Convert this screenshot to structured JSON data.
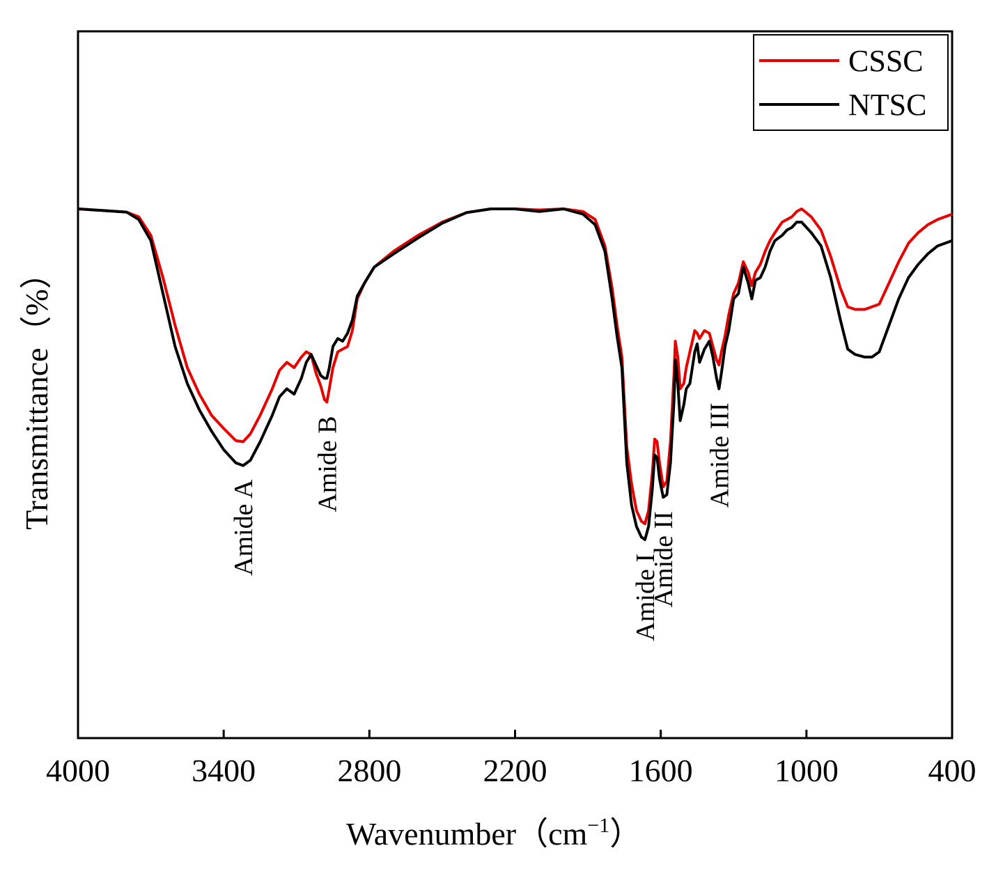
{
  "chart_data": {
    "type": "line",
    "title": "",
    "xlabel": "Wavenumber（cm",
    "xlabel_sup": "−1",
    "xlabel_close": "）",
    "ylabel": "Transmittance（%）",
    "xlim": [
      4000,
      400
    ],
    "ylim": [
      0,
      100
    ],
    "x_ticks": [
      4000,
      3400,
      2800,
      2200,
      1600,
      1000,
      400
    ],
    "y_ticks_shown": false,
    "grid": false,
    "legend": {
      "position": "top-right"
    },
    "series": [
      {
        "name": "CSSC",
        "color": "#e60000",
        "points": [
          [
            4000,
            100
          ],
          [
            3900,
            99.7
          ],
          [
            3800,
            99.4
          ],
          [
            3750,
            98.5
          ],
          [
            3700,
            95
          ],
          [
            3650,
            87
          ],
          [
            3600,
            78
          ],
          [
            3550,
            70
          ],
          [
            3500,
            65
          ],
          [
            3450,
            61
          ],
          [
            3400,
            58.5
          ],
          [
            3350,
            56.2
          ],
          [
            3320,
            56
          ],
          [
            3290,
            57.5
          ],
          [
            3250,
            61
          ],
          [
            3200,
            66
          ],
          [
            3170,
            69.5
          ],
          [
            3140,
            71
          ],
          [
            3110,
            70
          ],
          [
            3080,
            72
          ],
          [
            3060,
            73
          ],
          [
            3040,
            72.5
          ],
          [
            3020,
            69
          ],
          [
            3000,
            66.5
          ],
          [
            2985,
            64
          ],
          [
            2975,
            63.5
          ],
          [
            2965,
            66
          ],
          [
            2950,
            70
          ],
          [
            2930,
            73
          ],
          [
            2910,
            73.5
          ],
          [
            2890,
            74
          ],
          [
            2870,
            77
          ],
          [
            2850,
            83
          ],
          [
            2820,
            86
          ],
          [
            2780,
            89
          ],
          [
            2700,
            92
          ],
          [
            2600,
            95
          ],
          [
            2500,
            97.5
          ],
          [
            2400,
            99.3
          ],
          [
            2300,
            100
          ],
          [
            2200,
            100
          ],
          [
            2100,
            99.8
          ],
          [
            2000,
            100
          ],
          [
            1920,
            99.5
          ],
          [
            1870,
            98
          ],
          [
            1830,
            93
          ],
          [
            1800,
            85
          ],
          [
            1780,
            78
          ],
          [
            1770,
            75
          ],
          [
            1760,
            72
          ],
          [
            1740,
            55
          ],
          [
            1720,
            48
          ],
          [
            1700,
            43
          ],
          [
            1680,
            41
          ],
          [
            1665,
            40.5
          ],
          [
            1650,
            43
          ],
          [
            1635,
            50
          ],
          [
            1625,
            56.5
          ],
          [
            1615,
            56
          ],
          [
            1605,
            52
          ],
          [
            1590,
            47.5
          ],
          [
            1575,
            48.5
          ],
          [
            1560,
            56
          ],
          [
            1545,
            69
          ],
          [
            1540,
            75
          ],
          [
            1530,
            72
          ],
          [
            1520,
            66
          ],
          [
            1505,
            67
          ],
          [
            1495,
            70
          ],
          [
            1480,
            73
          ],
          [
            1460,
            77
          ],
          [
            1450,
            76.5
          ],
          [
            1440,
            75.5
          ],
          [
            1420,
            77
          ],
          [
            1400,
            76.5
          ],
          [
            1385,
            74
          ],
          [
            1370,
            71.5
          ],
          [
            1360,
            70.5
          ],
          [
            1350,
            73
          ],
          [
            1335,
            76
          ],
          [
            1320,
            80
          ],
          [
            1300,
            84
          ],
          [
            1280,
            86
          ],
          [
            1260,
            90
          ],
          [
            1240,
            88
          ],
          [
            1225,
            85.5
          ],
          [
            1210,
            88
          ],
          [
            1190,
            89.5
          ],
          [
            1170,
            92
          ],
          [
            1150,
            94
          ],
          [
            1130,
            95.5
          ],
          [
            1100,
            97.5
          ],
          [
            1080,
            98
          ],
          [
            1060,
            98.5
          ],
          [
            1040,
            99.5
          ],
          [
            1020,
            100
          ],
          [
            980,
            98.5
          ],
          [
            940,
            96
          ],
          [
            900,
            91
          ],
          [
            860,
            85
          ],
          [
            830,
            81.5
          ],
          [
            800,
            81
          ],
          [
            760,
            81
          ],
          [
            730,
            81.5
          ],
          [
            700,
            82
          ],
          [
            660,
            86
          ],
          [
            620,
            90
          ],
          [
            580,
            93.5
          ],
          [
            540,
            95.5
          ],
          [
            500,
            97
          ],
          [
            460,
            98
          ],
          [
            400,
            99
          ]
        ]
      },
      {
        "name": "NTSC",
        "color": "#000000",
        "points": [
          [
            4000,
            100
          ],
          [
            3900,
            99.7
          ],
          [
            3800,
            99.4
          ],
          [
            3750,
            98
          ],
          [
            3700,
            94
          ],
          [
            3650,
            84
          ],
          [
            3600,
            74
          ],
          [
            3550,
            67
          ],
          [
            3500,
            62
          ],
          [
            3450,
            58
          ],
          [
            3400,
            54.5
          ],
          [
            3350,
            52
          ],
          [
            3320,
            51.5
          ],
          [
            3290,
            52.5
          ],
          [
            3250,
            56
          ],
          [
            3200,
            61
          ],
          [
            3170,
            64.5
          ],
          [
            3140,
            66
          ],
          [
            3110,
            65
          ],
          [
            3080,
            68
          ],
          [
            3060,
            71
          ],
          [
            3040,
            72.5
          ],
          [
            3020,
            70.5
          ],
          [
            3000,
            68.5
          ],
          [
            2985,
            68
          ],
          [
            2975,
            68
          ],
          [
            2965,
            70
          ],
          [
            2950,
            74
          ],
          [
            2930,
            75.5
          ],
          [
            2910,
            75
          ],
          [
            2890,
            76.5
          ],
          [
            2870,
            79
          ],
          [
            2850,
            83.5
          ],
          [
            2820,
            86
          ],
          [
            2780,
            89
          ],
          [
            2700,
            91.5
          ],
          [
            2600,
            94.5
          ],
          [
            2500,
            97.3
          ],
          [
            2400,
            99.3
          ],
          [
            2300,
            100
          ],
          [
            2200,
            100
          ],
          [
            2100,
            99.5
          ],
          [
            2000,
            100
          ],
          [
            1920,
            99
          ],
          [
            1870,
            97
          ],
          [
            1830,
            92
          ],
          [
            1800,
            83
          ],
          [
            1780,
            76
          ],
          [
            1770,
            73
          ],
          [
            1760,
            70
          ],
          [
            1740,
            52
          ],
          [
            1720,
            44
          ],
          [
            1700,
            40
          ],
          [
            1680,
            38
          ],
          [
            1665,
            37.5
          ],
          [
            1650,
            40
          ],
          [
            1635,
            47
          ],
          [
            1625,
            53.5
          ],
          [
            1615,
            53
          ],
          [
            1605,
            49
          ],
          [
            1590,
            45.5
          ],
          [
            1575,
            46
          ],
          [
            1560,
            52
          ],
          [
            1545,
            64
          ],
          [
            1540,
            71.5
          ],
          [
            1530,
            67
          ],
          [
            1520,
            60
          ],
          [
            1505,
            63
          ],
          [
            1495,
            66
          ],
          [
            1480,
            67
          ],
          [
            1460,
            73
          ],
          [
            1450,
            74.5
          ],
          [
            1440,
            71
          ],
          [
            1420,
            73.5
          ],
          [
            1400,
            75
          ],
          [
            1385,
            72
          ],
          [
            1370,
            68
          ],
          [
            1360,
            66
          ],
          [
            1350,
            69
          ],
          [
            1335,
            74
          ],
          [
            1320,
            77
          ],
          [
            1300,
            83
          ],
          [
            1280,
            84
          ],
          [
            1260,
            89
          ],
          [
            1240,
            86
          ],
          [
            1225,
            83
          ],
          [
            1210,
            86.5
          ],
          [
            1190,
            87
          ],
          [
            1170,
            89
          ],
          [
            1150,
            92
          ],
          [
            1130,
            94
          ],
          [
            1100,
            95
          ],
          [
            1080,
            96
          ],
          [
            1060,
            96.5
          ],
          [
            1040,
            97.5
          ],
          [
            1020,
            97.5
          ],
          [
            980,
            95.5
          ],
          [
            940,
            93
          ],
          [
            900,
            87
          ],
          [
            860,
            79
          ],
          [
            830,
            73.5
          ],
          [
            800,
            72.5
          ],
          [
            760,
            72
          ],
          [
            730,
            72
          ],
          [
            700,
            73
          ],
          [
            660,
            78
          ],
          [
            620,
            83
          ],
          [
            580,
            87
          ],
          [
            540,
            89.5
          ],
          [
            500,
            91.5
          ],
          [
            460,
            93
          ],
          [
            400,
            94
          ]
        ]
      }
    ],
    "annotations": [
      {
        "text": "Amide A",
        "x": 3320
      },
      {
        "text": "Amide B",
        "x": 2975
      },
      {
        "text": "Amide I",
        "x": 1665
      },
      {
        "text": "Amide II",
        "x": 1590
      },
      {
        "text": "Amide III",
        "x": 1360
      }
    ]
  }
}
